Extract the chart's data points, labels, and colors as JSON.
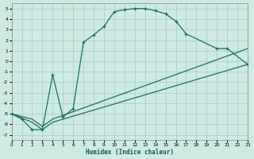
{
  "xlabel": "Humidex (Indice chaleur)",
  "background_color": "#cdeae3",
  "grid_color": "#a8cdc5",
  "line_color": "#1a7060",
  "xlim": [
    0,
    23
  ],
  "ylim": [
    -7.5,
    5.5
  ],
  "yticks": [
    -7,
    -6,
    -5,
    -4,
    -3,
    -2,
    -1,
    0,
    1,
    2,
    3,
    4,
    5
  ],
  "xticks": [
    0,
    1,
    2,
    3,
    4,
    5,
    6,
    7,
    8,
    9,
    10,
    11,
    12,
    13,
    14,
    15,
    16,
    17,
    18,
    19,
    20,
    21,
    22,
    23
  ],
  "curve1_x": [
    0,
    1,
    2,
    3,
    4,
    5,
    6,
    7,
    8,
    9,
    10,
    11,
    12,
    13,
    14,
    15,
    16,
    17,
    20,
    21,
    23
  ],
  "curve1_y": [
    -5.0,
    -5.5,
    -6.5,
    -6.5,
    -1.3,
    -5.3,
    -4.5,
    1.8,
    2.5,
    3.3,
    4.7,
    4.9,
    5.0,
    5.0,
    4.8,
    4.5,
    3.8,
    2.6,
    1.2,
    1.2,
    -0.3
  ],
  "curve2_x": [
    0,
    2,
    3,
    4,
    23
  ],
  "curve2_y": [
    -5.0,
    -5.8,
    -6.5,
    -5.8,
    -0.3
  ],
  "curve3_x": [
    0,
    2,
    3,
    4,
    23
  ],
  "curve3_y": [
    -5.0,
    -5.5,
    -6.2,
    -5.5,
    1.2
  ]
}
